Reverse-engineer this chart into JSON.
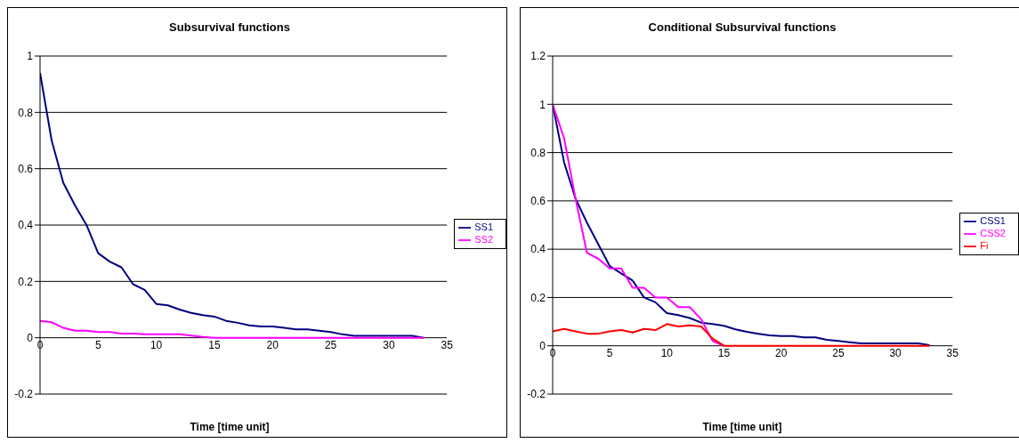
{
  "chart_data": [
    {
      "type": "line",
      "title": "Subsurvival functions",
      "xlabel": "Time [time unit]",
      "x": [
        0,
        1,
        2,
        3,
        4,
        5,
        6,
        7,
        8,
        9,
        10,
        11,
        12,
        13,
        14,
        15,
        16,
        17,
        18,
        19,
        20,
        21,
        22,
        23,
        24,
        25,
        26,
        27,
        28,
        29,
        30,
        31,
        32,
        33
      ],
      "xlim": [
        0,
        35
      ],
      "xticks": [
        0,
        5,
        10,
        15,
        20,
        25,
        30,
        35
      ],
      "ylim": [
        -0.2,
        1
      ],
      "yticks": [
        -0.2,
        0,
        0.2,
        0.4,
        0.6,
        0.8,
        1
      ],
      "grid": "y",
      "legend": "right",
      "marker": "none",
      "line_style": "solid",
      "series": [
        {
          "name": "SS1",
          "color": "#000080",
          "values": [
            0.94,
            0.7,
            0.55,
            0.47,
            0.4,
            0.3,
            0.27,
            0.25,
            0.19,
            0.17,
            0.12,
            0.115,
            0.1,
            0.088,
            0.08,
            0.075,
            0.06,
            0.053,
            0.044,
            0.04,
            0.04,
            0.035,
            0.03,
            0.03,
            0.025,
            0.02,
            0.012,
            0.007,
            0.007,
            0.007,
            0.007,
            0.007,
            0.007,
            0
          ]
        },
        {
          "name": "SS2",
          "color": "#ff00ff",
          "values": [
            0.06,
            0.055,
            0.035,
            0.025,
            0.025,
            0.02,
            0.02,
            0.015,
            0.015,
            0.012,
            0.012,
            0.012,
            0.012,
            0.008,
            0.003,
            0,
            0,
            0,
            0,
            0,
            0,
            0,
            0,
            0,
            0,
            0,
            0,
            0,
            0,
            0,
            0,
            0,
            0,
            0
          ]
        }
      ]
    },
    {
      "type": "line",
      "title": "Conditional Subsurvival functions",
      "xlabel": "Time [time unit]",
      "x": [
        0,
        1,
        2,
        3,
        4,
        5,
        6,
        7,
        8,
        9,
        10,
        11,
        12,
        13,
        14,
        15,
        16,
        17,
        18,
        19,
        20,
        21,
        22,
        23,
        24,
        25,
        26,
        27,
        28,
        29,
        30,
        31,
        32,
        33
      ],
      "xlim": [
        0,
        35
      ],
      "xticks": [
        0,
        5,
        10,
        15,
        20,
        25,
        30,
        35
      ],
      "ylim": [
        -0.2,
        1.2
      ],
      "yticks": [
        -0.2,
        0,
        0.2,
        0.4,
        0.6,
        0.8,
        1,
        1.2
      ],
      "grid": "y",
      "legend": "right",
      "marker": "none",
      "line_style": "solid",
      "series": [
        {
          "name": "CSS1",
          "color": "#000080",
          "values": [
            1,
            0.76,
            0.61,
            0.51,
            0.42,
            0.33,
            0.3,
            0.27,
            0.2,
            0.18,
            0.135,
            0.127,
            0.115,
            0.096,
            0.09,
            0.083,
            0.068,
            0.058,
            0.05,
            0.043,
            0.04,
            0.04,
            0.035,
            0.035,
            0.025,
            0.02,
            0.015,
            0.01,
            0.01,
            0.01,
            0.01,
            0.01,
            0.01,
            0.003
          ]
        },
        {
          "name": "CSS2",
          "color": "#ff00ff",
          "values": [
            1,
            0.86,
            0.61,
            0.385,
            0.36,
            0.32,
            0.32,
            0.24,
            0.24,
            0.2,
            0.2,
            0.16,
            0.16,
            0.11,
            0.02,
            0,
            null,
            null,
            null,
            null,
            null,
            null,
            null,
            null,
            null,
            null,
            null,
            null,
            null,
            null,
            null,
            null,
            null,
            null
          ]
        },
        {
          "name": "Fi",
          "color": "#ff0000",
          "values": [
            0.06,
            0.07,
            0.06,
            0.05,
            0.05,
            0.06,
            0.065,
            0.055,
            0.07,
            0.065,
            0.09,
            0.08,
            0.085,
            0.08,
            0.03,
            0,
            0,
            0,
            0,
            0,
            0,
            0,
            0,
            0,
            0,
            0,
            0,
            0,
            0,
            0,
            0,
            0,
            0,
            0
          ]
        }
      ]
    }
  ]
}
